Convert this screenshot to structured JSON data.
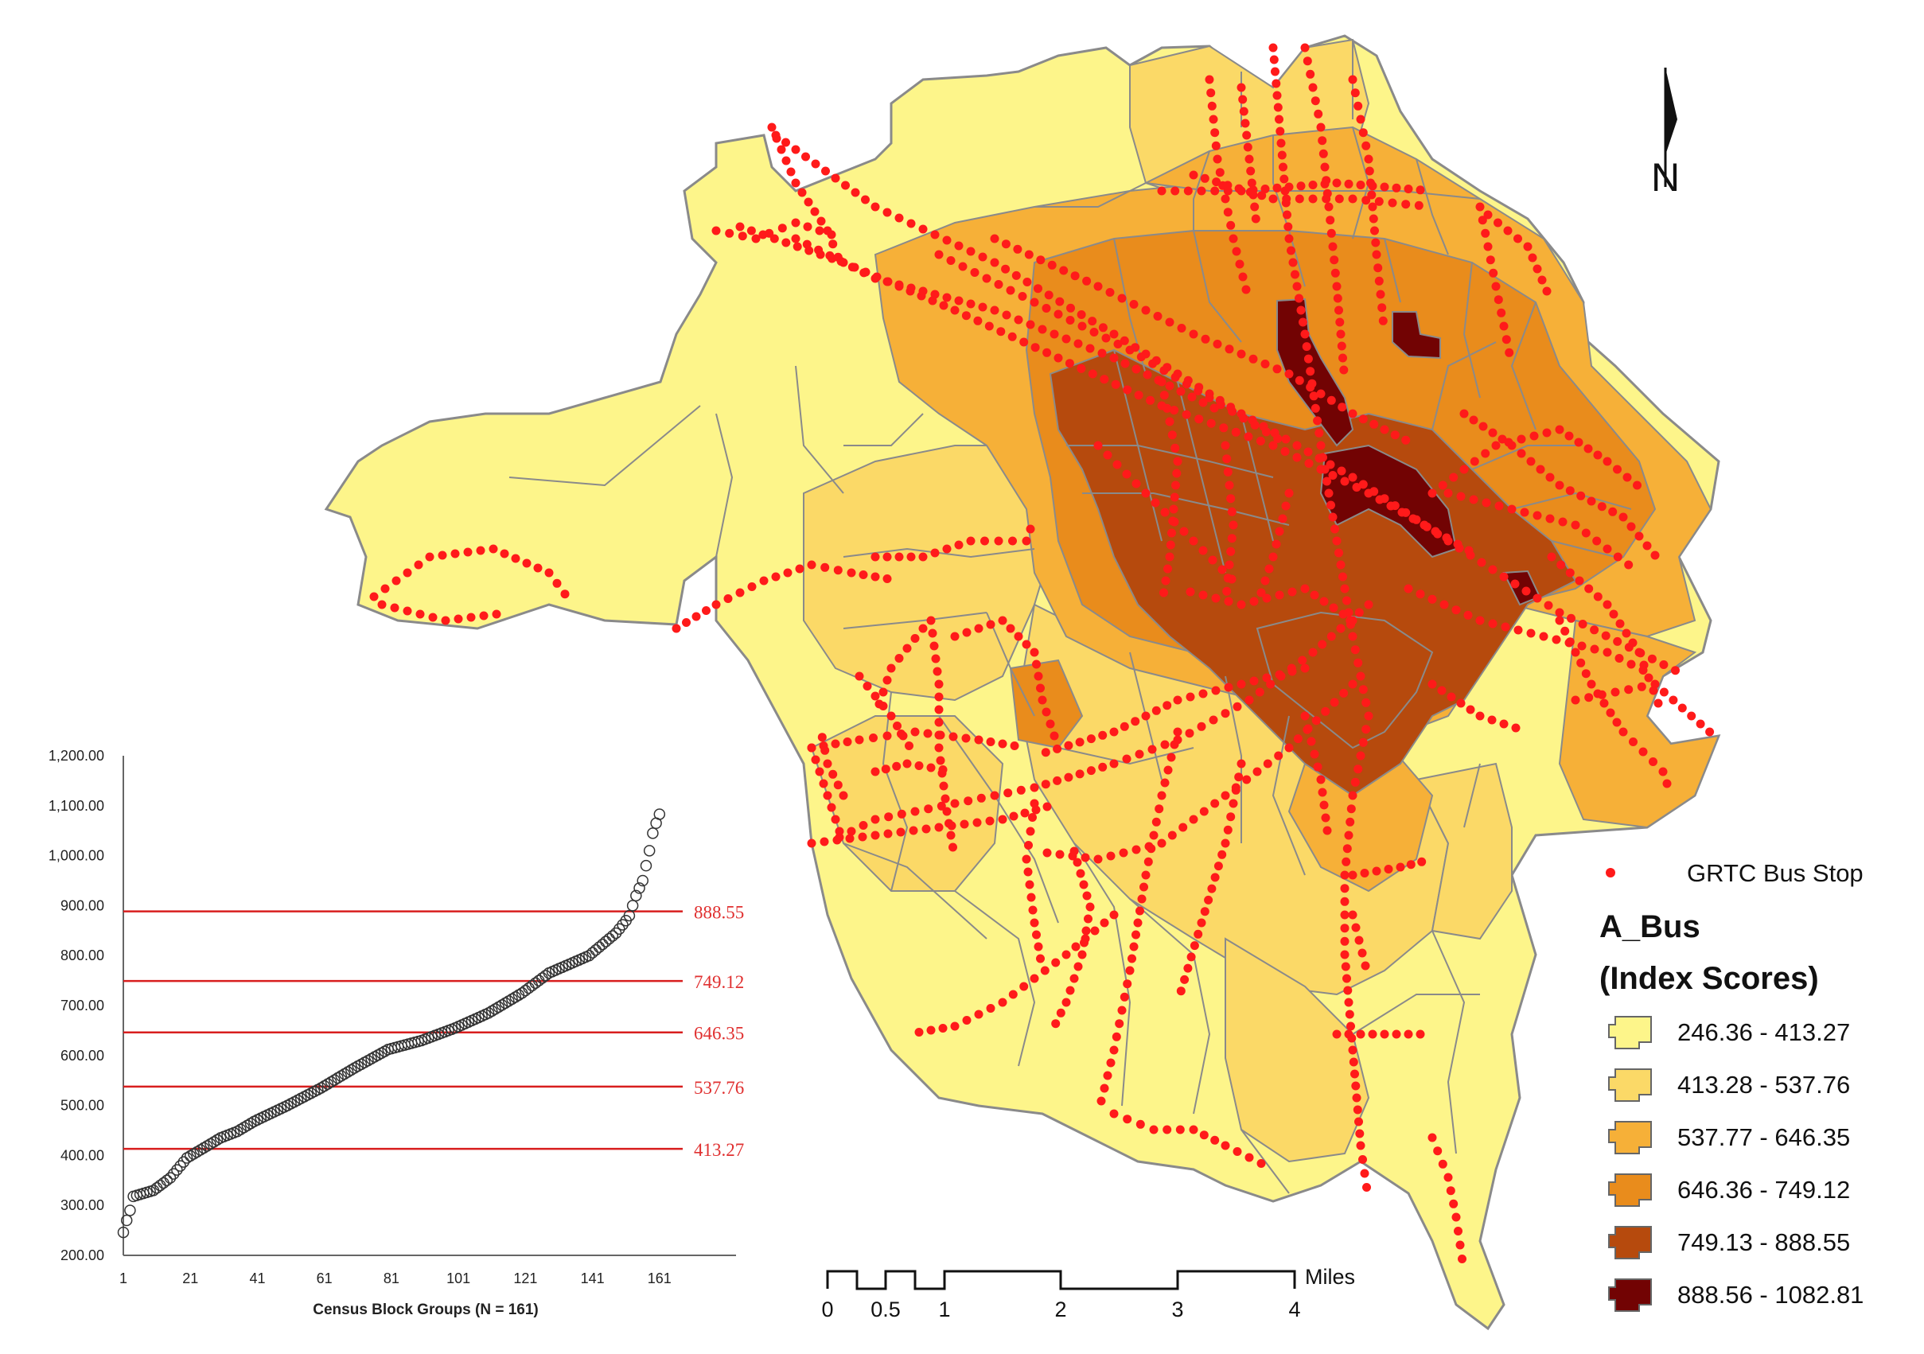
{
  "north_arrow": {
    "label": "N"
  },
  "legend": {
    "bus_stop_label": "GRTC Bus Stop",
    "title": "A_Bus",
    "subtitle": "(Index Scores)",
    "classes": [
      {
        "label": "246.36 - 413.27",
        "color": "#fdf58a"
      },
      {
        "label": "413.28 - 537.76",
        "color": "#fbd967"
      },
      {
        "label": "537.77 - 646.35",
        "color": "#f6b038"
      },
      {
        "label": "646.36 - 749.12",
        "color": "#e98c1c"
      },
      {
        "label": "749.13 - 888.55",
        "color": "#b64a0d"
      },
      {
        "label": "888.56 - 1082.81",
        "color": "#720303"
      }
    ],
    "bus_stop_color": "#ff1a1a"
  },
  "scale_bar": {
    "unit": "Miles",
    "ticks": [
      "0",
      "0.5",
      "1",
      "2",
      "3",
      "4"
    ]
  },
  "chart_data": {
    "type": "scatter",
    "xlabel": "Census Block Groups (N = 161)",
    "ylabel": "",
    "xlim": [
      1,
      180
    ],
    "ylim": [
      200,
      1200
    ],
    "x_ticks": [
      "1",
      "21",
      "41",
      "61",
      "81",
      "101",
      "121",
      "141",
      "161"
    ],
    "y_ticks": [
      "200.00",
      "300.00",
      "400.00",
      "500.00",
      "600.00",
      "700.00",
      "800.00",
      "900.00",
      "1,000.00",
      "1,100.00",
      "1,200.00"
    ],
    "thresholds": [
      {
        "value": 888.55,
        "label": "888.55"
      },
      {
        "value": 749.12,
        "label": "749.12"
      },
      {
        "value": 646.35,
        "label": "646.35"
      },
      {
        "value": 537.76,
        "label": "537.76"
      },
      {
        "value": 413.27,
        "label": "413.27"
      }
    ],
    "n": 161,
    "anchors": [
      [
        1,
        246
      ],
      [
        2,
        270
      ],
      [
        3,
        290
      ],
      [
        4,
        318
      ],
      [
        6,
        322
      ],
      [
        10,
        330
      ],
      [
        15,
        355
      ],
      [
        20,
        395
      ],
      [
        25,
        415
      ],
      [
        30,
        435
      ],
      [
        35,
        448
      ],
      [
        40,
        468
      ],
      [
        50,
        500
      ],
      [
        60,
        535
      ],
      [
        70,
        575
      ],
      [
        80,
        612
      ],
      [
        90,
        630
      ],
      [
        100,
        655
      ],
      [
        110,
        685
      ],
      [
        120,
        725
      ],
      [
        128,
        765
      ],
      [
        140,
        800
      ],
      [
        148,
        845
      ],
      [
        151,
        870
      ],
      [
        152,
        880
      ],
      [
        154,
        920
      ],
      [
        156,
        950
      ],
      [
        158,
        1010
      ],
      [
        159,
        1045
      ],
      [
        160,
        1065
      ],
      [
        161,
        1083
      ]
    ]
  }
}
